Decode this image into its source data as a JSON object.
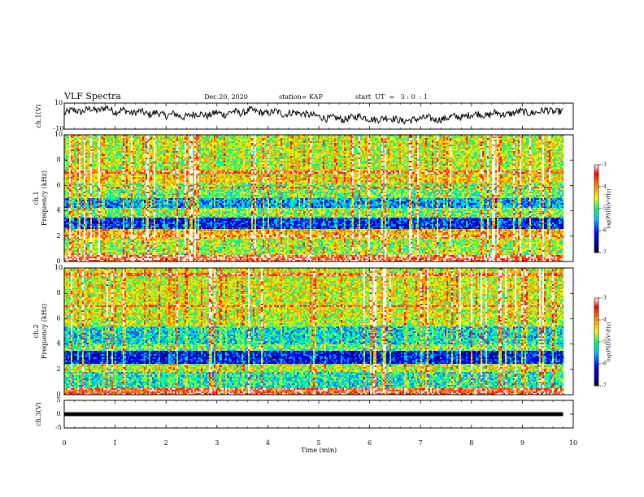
{
  "header": {
    "title": "VLF Spectra",
    "date": "Dec.20, 2020",
    "station": "station= KAP",
    "start_ut": "start  UT  =   3 : 0  : 1"
  },
  "chart_data": [
    {
      "type": "line",
      "name": "ch1-waveform",
      "ylabel": "ch.1(V)",
      "ylim": [
        -10,
        10
      ],
      "yticks": [
        "10",
        "-10"
      ],
      "xlim": [
        0,
        10
      ],
      "x_extent": [
        0,
        9.8
      ],
      "values": [
        2,
        5,
        3,
        6,
        4,
        7,
        3,
        5,
        2,
        4,
        1,
        3,
        0,
        2,
        -1,
        1,
        2,
        0,
        3,
        1,
        4,
        2,
        5,
        3,
        2,
        4,
        1,
        3,
        2,
        1,
        0,
        -2,
        -1,
        -3,
        -1,
        0,
        -2,
        -3,
        -1,
        -2,
        -4,
        -3,
        -2,
        -1,
        -3,
        -2,
        0,
        -1,
        1,
        2,
        0,
        3,
        1,
        2,
        4,
        2,
        3,
        5,
        3,
        4
      ]
    },
    {
      "type": "heatmap",
      "name": "ch1-spectrogram",
      "ylabel": "ch.1 Frequency (kHz)",
      "ylim": [
        0,
        10
      ],
      "yticks": [
        "0",
        "2",
        "4",
        "6",
        "8",
        "10"
      ],
      "xlim": [
        0,
        10
      ],
      "x_extent": [
        0,
        9.8
      ],
      "colorbar": {
        "label": "log(PSD)(V²/Hz)",
        "range": [
          -7,
          -3
        ],
        "ticks": [
          "-3",
          "-4",
          "-5",
          "-6",
          "-7"
        ]
      },
      "bands_khz": [
        {
          "from": 0,
          "to": 0.5,
          "level": -3.4
        },
        {
          "from": 0.5,
          "to": 1.8,
          "level": -4.7
        },
        {
          "from": 1.8,
          "to": 2.6,
          "level": -4.2
        },
        {
          "from": 2.6,
          "to": 3.4,
          "level": -6.1
        },
        {
          "from": 3.4,
          "to": 4.2,
          "level": -4.8
        },
        {
          "from": 4.2,
          "to": 5.0,
          "level": -5.6
        },
        {
          "from": 5.0,
          "to": 6.2,
          "level": -4.9
        },
        {
          "from": 6.2,
          "to": 6.8,
          "level": -4.3
        },
        {
          "from": 6.8,
          "to": 10,
          "level": -4.6
        }
      ]
    },
    {
      "type": "heatmap",
      "name": "ch2-spectrogram",
      "ylabel": "ch.2 Frequency (kHz)",
      "ylim": [
        0,
        10
      ],
      "yticks": [
        "0",
        "2",
        "4",
        "6",
        "8",
        "10"
      ],
      "xlim": [
        0,
        10
      ],
      "x_extent": [
        0,
        9.8
      ],
      "colorbar": {
        "label": "log(PSD)(V²/Hz)",
        "range": [
          -7,
          -3
        ],
        "ticks": [
          "-3",
          "-4",
          "-5",
          "-6",
          "-7"
        ]
      },
      "bands_khz": [
        {
          "from": 0,
          "to": 0.5,
          "level": -3.5
        },
        {
          "from": 0.5,
          "to": 1.8,
          "level": -5.2
        },
        {
          "from": 1.8,
          "to": 2.4,
          "level": -4.6
        },
        {
          "from": 2.4,
          "to": 3.4,
          "level": -6.2
        },
        {
          "from": 3.4,
          "to": 4.0,
          "level": -4.9
        },
        {
          "from": 4.0,
          "to": 5.4,
          "level": -5.3
        },
        {
          "from": 5.4,
          "to": 6.2,
          "level": -4.6
        },
        {
          "from": 6.2,
          "to": 10,
          "level": -4.5
        }
      ]
    },
    {
      "type": "line",
      "name": "ch3-waveform",
      "ylabel": "ch.3(V)",
      "ylim": [
        -5,
        5
      ],
      "yticks": [
        "5",
        "0",
        "-5"
      ],
      "xlim": [
        0,
        10
      ],
      "x_extent": [
        0,
        9.8
      ],
      "band": [
        -0.7,
        0.7
      ]
    }
  ],
  "xaxis": {
    "label": "Time (min)",
    "ticks": [
      "0",
      "1",
      "2",
      "3",
      "4",
      "5",
      "6",
      "7",
      "8",
      "9",
      "10"
    ]
  },
  "colors": {
    "spectrum_low": "#000080",
    "spectrum_high": "#ff0000",
    "line": "#000000"
  }
}
